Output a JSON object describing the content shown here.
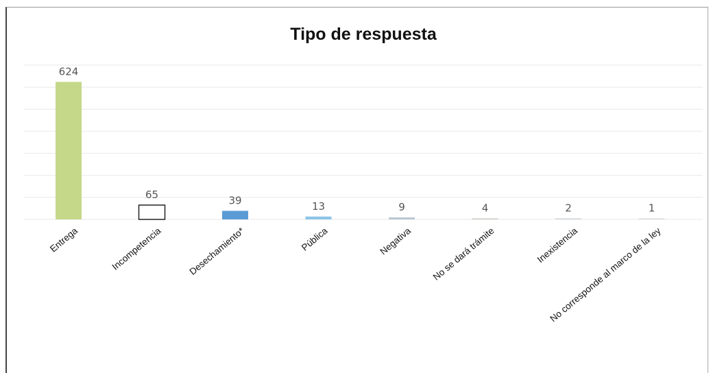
{
  "chart_data": {
    "type": "bar",
    "title": "Tipo de respuesta",
    "xlabel": "",
    "ylabel": "",
    "ylim": [
      0,
      700
    ],
    "grid": true,
    "categories": [
      "Entrega",
      "Incompetencia",
      "Desechamiento*",
      "Pública",
      "Negativa",
      "No se dará trámite",
      "Inexistencia",
      "No corresponde al marco de la ley"
    ],
    "values": [
      624,
      65,
      39,
      13,
      9,
      4,
      2,
      1
    ],
    "data_labels": [
      "624",
      "65",
      "39",
      "13",
      "9",
      "4",
      "2",
      "1"
    ],
    "bar_styles": [
      {
        "fill": "#c5d88a",
        "stroke": "none"
      },
      {
        "fill": "#ffffff",
        "stroke": "#222222"
      },
      {
        "fill": "#5b9bd5",
        "stroke": "none"
      },
      {
        "fill": "#8cc4e8",
        "stroke": "none"
      },
      {
        "fill": "#b9c6d2",
        "stroke": "none"
      },
      {
        "fill": "#c9ccc2",
        "stroke": "none"
      },
      {
        "fill": "#cfd4d8",
        "stroke": "none"
      },
      {
        "fill": "#d9dcdf",
        "stroke": "none"
      }
    ]
  }
}
